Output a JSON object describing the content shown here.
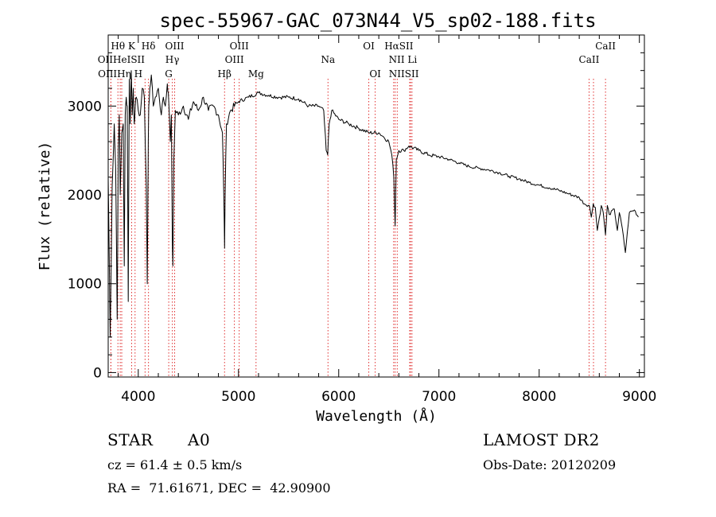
{
  "chart_data": {
    "type": "line",
    "title": "spec-55967-GAC_073N44_V5_sp02-188.fits",
    "xlabel": "Wavelength (Å)",
    "ylabel": "Flux (relative)",
    "xlim": [
      3700,
      9050
    ],
    "ylim": [
      -50,
      3800
    ],
    "x_ticks": [
      4000,
      5000,
      6000,
      7000,
      8000,
      9000
    ],
    "y_ticks": [
      0,
      1000,
      2000,
      3000
    ],
    "x_ticks_labels": [
      "4000",
      "5000",
      "6000",
      "7000",
      "8000",
      "9000"
    ],
    "y_ticks_labels": [
      "0",
      "1000",
      "2000",
      "3000"
    ],
    "grid": false,
    "series": [
      {
        "x": [
          3700,
          3720,
          3740,
          3760,
          3775,
          3790,
          3800,
          3810,
          3820,
          3835,
          3850,
          3860,
          3870,
          3880,
          3890,
          3900,
          3910,
          3920,
          3930,
          3940,
          3950,
          3960,
          3970,
          3980,
          4000,
          4020,
          4040,
          4060,
          4080,
          4090,
          4100,
          4105,
          4115,
          4130,
          4150,
          4170,
          4200,
          4230,
          4250,
          4270,
          4290,
          4300,
          4320,
          4330,
          4340,
          4345,
          4355,
          4370,
          4400,
          4450,
          4500,
          4550,
          4600,
          4650,
          4700,
          4750,
          4800,
          4840,
          4855,
          4861,
          4867,
          4880,
          4920,
          5000,
          5100,
          5200,
          5300,
          5400,
          5500,
          5600,
          5700,
          5800,
          5850,
          5875,
          5890,
          5905,
          5930,
          6000,
          6100,
          6200,
          6300,
          6400,
          6450,
          6500,
          6530,
          6550,
          6563,
          6575,
          6600,
          6650,
          6700,
          6800,
          6900,
          7000,
          7100,
          7200,
          7300,
          7400,
          7500,
          7600,
          7700,
          7800,
          7900,
          8000,
          8100,
          8200,
          8300,
          8400,
          8450,
          8500,
          8520,
          8540,
          8560,
          8580,
          8620,
          8640,
          8662,
          8680,
          8700,
          8750,
          8780,
          8800,
          8830,
          8860,
          8900,
          8950,
          8990
        ],
        "y": [
          2200,
          400,
          2100,
          2800,
          2300,
          600,
          2500,
          2900,
          2000,
          2700,
          2800,
          1200,
          2900,
          3100,
          3000,
          800,
          3300,
          2800,
          3400,
          2900,
          3200,
          2800,
          3000,
          3100,
          2950,
          2900,
          3200,
          3100,
          2100,
          1000,
          2600,
          3000,
          3200,
          3350,
          3000,
          3100,
          3200,
          2900,
          3100,
          3000,
          3250,
          3150,
          2600,
          2900,
          1500,
          1200,
          2400,
          2950,
          2900,
          3000,
          2850,
          3050,
          2950,
          3100,
          2950,
          3000,
          2900,
          2700,
          1900,
          1400,
          2000,
          2800,
          2950,
          3050,
          3100,
          3150,
          3120,
          3100,
          3100,
          3080,
          3000,
          3000,
          2950,
          2500,
          2450,
          2800,
          2950,
          2850,
          2800,
          2750,
          2700,
          2700,
          2650,
          2600,
          2450,
          2200,
          1650,
          2400,
          2500,
          2500,
          2550,
          2500,
          2450,
          2430,
          2400,
          2360,
          2320,
          2300,
          2280,
          2250,
          2210,
          2180,
          2140,
          2110,
          2080,
          2050,
          2010,
          1970,
          1900,
          1880,
          1750,
          1900,
          1860,
          1600,
          1880,
          1800,
          1550,
          1880,
          1780,
          1840,
          1600,
          1800,
          1620,
          1350,
          1800,
          1830,
          1750
        ]
      }
    ],
    "lines": [
      {
        "name": "Hθ",
        "x": 3797
      },
      {
        "name": "OII",
        "x": 3727
      },
      {
        "name": "OIII",
        "x": 3727
      },
      {
        "name": "HeI",
        "x": 3820
      },
      {
        "name": "Hη",
        "x": 3835
      },
      {
        "name": "K",
        "x": 3934
      },
      {
        "name": "H",
        "x": 3968
      },
      {
        "name": "SII",
        "x": 4068
      },
      {
        "name": "Hδ",
        "x": 4102
      },
      {
        "name": "OIII",
        "x": 4363
      },
      {
        "name": "Hγ",
        "x": 4340
      },
      {
        "name": "G",
        "x": 4304
      },
      {
        "name": "OIII",
        "x": 4959
      },
      {
        "name": "OIII",
        "x": 5007
      },
      {
        "name": "Hβ",
        "x": 4861
      },
      {
        "name": "Mg",
        "x": 5175
      },
      {
        "name": "Na",
        "x": 5893
      },
      {
        "name": "OI",
        "x": 6300
      },
      {
        "name": "OI",
        "x": 6364
      },
      {
        "name": "Hα",
        "x": 6563
      },
      {
        "name": "NII",
        "x": 6548
      },
      {
        "name": "NII",
        "x": 6584
      },
      {
        "name": "SII",
        "x": 6717
      },
      {
        "name": "SII",
        "x": 6731
      },
      {
        "name": "Li",
        "x": 6708
      },
      {
        "name": "CaII",
        "x": 8498
      },
      {
        "name": "CaII",
        "x": 8542
      },
      {
        "name": "CaII",
        "x": 8662
      }
    ],
    "line_label_rows": [
      [
        {
          "text": "Hθ",
          "x": 3797
        },
        {
          "text": "K",
          "x": 3934
        },
        {
          "text": "Hδ",
          "x": 4102
        },
        {
          "text": "OIII",
          "x": 4363
        },
        {
          "text": "OIII",
          "x": 5007
        },
        {
          "text": "OI",
          "x": 6300
        },
        {
          "text": "HαSII",
          "x": 6600
        },
        {
          "text": "CaII",
          "x": 8662
        }
      ],
      [
        {
          "text": "OIIHeISII",
          "x": 3830
        },
        {
          "text": "Hγ",
          "x": 4340
        },
        {
          "text": "OIII",
          "x": 4959
        },
        {
          "text": "Na",
          "x": 5893
        },
        {
          "text": "NII Li",
          "x": 6640
        },
        {
          "text": "CaII",
          "x": 8498
        }
      ],
      [
        {
          "text": "OIIIHη H",
          "x": 3820
        },
        {
          "text": "G",
          "x": 4304
        },
        {
          "text": "Hβ",
          "x": 4861
        },
        {
          "text": "Mg",
          "x": 5175
        },
        {
          "text": "OI",
          "x": 6364
        },
        {
          "text": "NIISII",
          "x": 6650
        }
      ]
    ]
  },
  "info": {
    "object_type": "STAR",
    "subclass": "A0",
    "survey": "LAMOST DR2",
    "cz": "cz = 61.4 ± 0.5 km/s",
    "obs_date": "Obs-Date: 20120209",
    "coords": "RA =  71.61671, DEC =  42.90900"
  },
  "colors": {
    "spectrum": "#000000",
    "line_markers": "#e03030",
    "axes": "#000000"
  }
}
